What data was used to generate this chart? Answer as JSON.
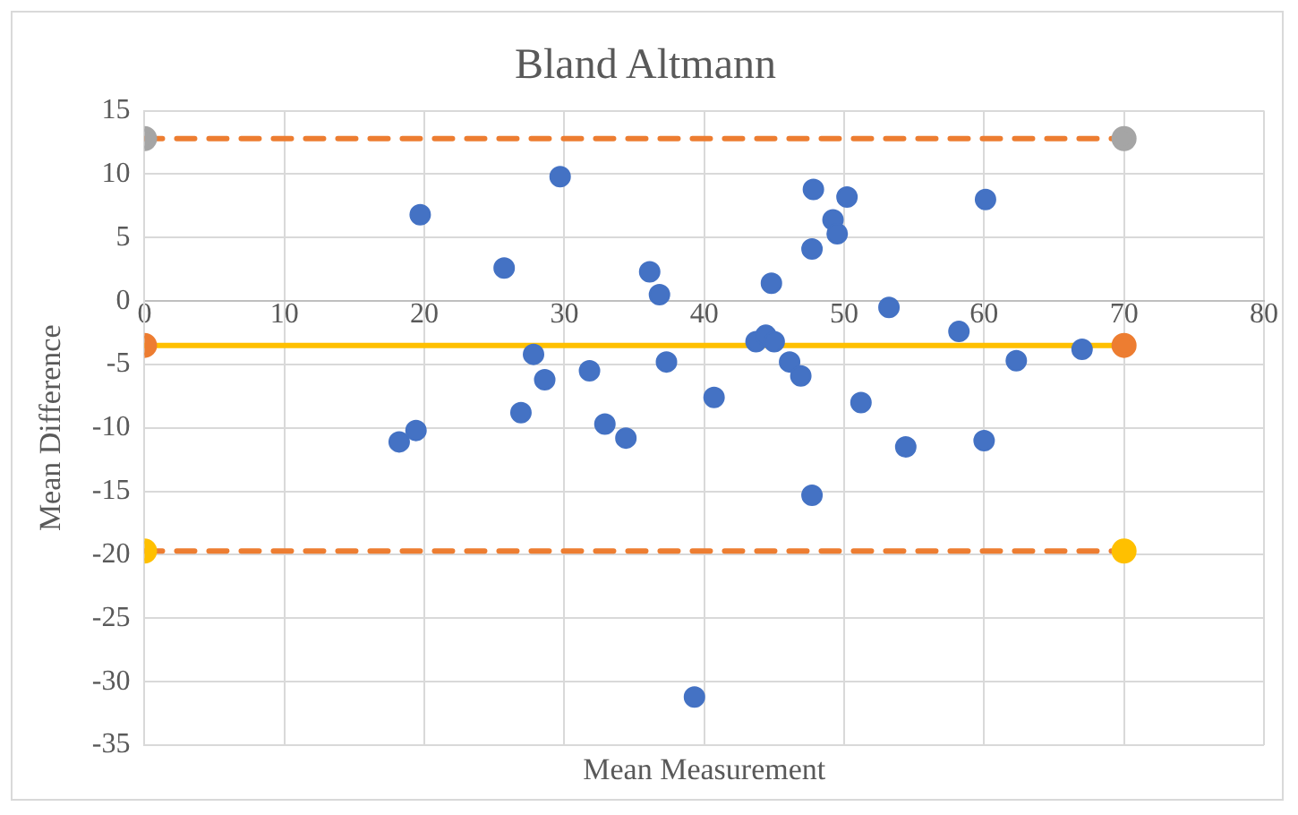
{
  "chart_data": {
    "type": "scatter",
    "title": "Bland Altmann",
    "xlabel": "Mean Measurement",
    "ylabel": "Mean Difference",
    "xlim": [
      0,
      80
    ],
    "xticks": [
      0,
      10,
      20,
      30,
      40,
      50,
      60,
      70,
      80
    ],
    "ylim": [
      -35,
      15
    ],
    "yticks": [
      -35,
      -30,
      -25,
      -20,
      -15,
      -10,
      -5,
      0,
      5,
      10,
      15
    ],
    "grid": true,
    "legend": false,
    "marker": "circle",
    "series": [
      {
        "type": "scatter",
        "color": "#4472c4",
        "x": [
          19.7,
          18.2,
          19.4,
          25.7,
          26.9,
          27.8,
          28.6,
          29.7,
          31.8,
          32.9,
          34.4,
          36.1,
          36.8,
          37.3,
          40.7,
          43.7,
          44.4,
          45.0,
          44.8,
          46.1,
          46.9,
          47.7,
          47.8,
          49.2,
          49.5,
          50.2,
          47.7,
          51.2,
          53.2,
          54.4,
          58.2,
          60.1,
          60.0,
          62.3,
          67.0,
          39.3
        ],
        "values": [
          6.8,
          -11.1,
          -10.2,
          2.6,
          -8.8,
          -4.2,
          -6.2,
          9.8,
          -5.5,
          -9.7,
          -10.8,
          2.3,
          0.5,
          -4.8,
          -7.6,
          -3.2,
          -2.7,
          -3.2,
          1.4,
          -4.8,
          -5.9,
          4.1,
          8.8,
          6.4,
          5.3,
          8.2,
          -15.3,
          -8.0,
          -0.5,
          -11.5,
          -2.4,
          8.0,
          -11.0,
          -4.7,
          -3.8,
          -31.2
        ]
      },
      {
        "type": "line",
        "color": "#ed7d31",
        "colors": [
          "#a5a5a5",
          "#a5a5a5"
        ],
        "line_style": "dashed",
        "x": [
          0,
          70
        ],
        "values": [
          12.8,
          12.8
        ]
      },
      {
        "type": "line",
        "color": "#ffc000",
        "colors": [
          "#ed7d31",
          "#ed7d31"
        ],
        "line_style": "solid",
        "x": [
          0,
          70
        ],
        "values": [
          -3.5,
          -3.5
        ]
      },
      {
        "type": "line",
        "color": "#ed7d31",
        "colors": [
          "#ffc000",
          "#ffc000"
        ],
        "line_style": "dashed",
        "x": [
          0,
          70
        ],
        "values": [
          -19.7,
          -19.7
        ]
      }
    ]
  }
}
